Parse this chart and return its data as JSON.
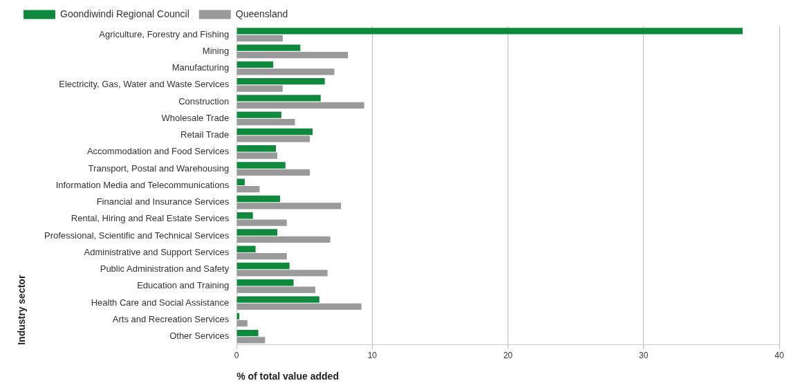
{
  "chart_data": {
    "type": "bar",
    "orientation": "horizontal",
    "xlabel": "% of total value added",
    "ylabel": "Industry sector",
    "categories": [
      "Agriculture, Forestry and Fishing",
      "Mining",
      "Manufacturing",
      "Electricity, Gas, Water and Waste Services",
      "Construction",
      "Wholesale Trade",
      "Retail Trade",
      "Accommodation and Food Services",
      "Transport, Postal and Warehousing",
      "Information Media and Telecommunications",
      "Financial and Insurance Services",
      "Rental, Hiring and Real Estate Services",
      "Professional, Scientific and Technical Services",
      "Administrative and Support Services",
      "Public Administration and Safety",
      "Education and Training",
      "Health Care and Social Assistance",
      "Arts and Recreation Services",
      "Other Services"
    ],
    "series": [
      {
        "name": "Goondiwindi Regional Council",
        "color": "#0f8a3c",
        "values": [
          37.3,
          4.7,
          2.7,
          6.5,
          6.2,
          3.3,
          5.6,
          2.9,
          3.6,
          0.6,
          3.2,
          1.2,
          3.0,
          1.4,
          3.9,
          4.2,
          6.1,
          0.2,
          1.6
        ]
      },
      {
        "name": "Queensland",
        "color": "#9a9a9a",
        "values": [
          3.4,
          8.2,
          7.2,
          3.4,
          9.4,
          4.3,
          5.4,
          3.0,
          5.4,
          1.7,
          7.7,
          3.7,
          6.9,
          3.7,
          6.7,
          5.8,
          9.2,
          0.8,
          2.1
        ]
      }
    ],
    "xlim": [
      0,
      40
    ],
    "xticks": [
      0,
      10,
      20,
      30,
      40
    ],
    "grid": "x",
    "legend": "top left"
  }
}
